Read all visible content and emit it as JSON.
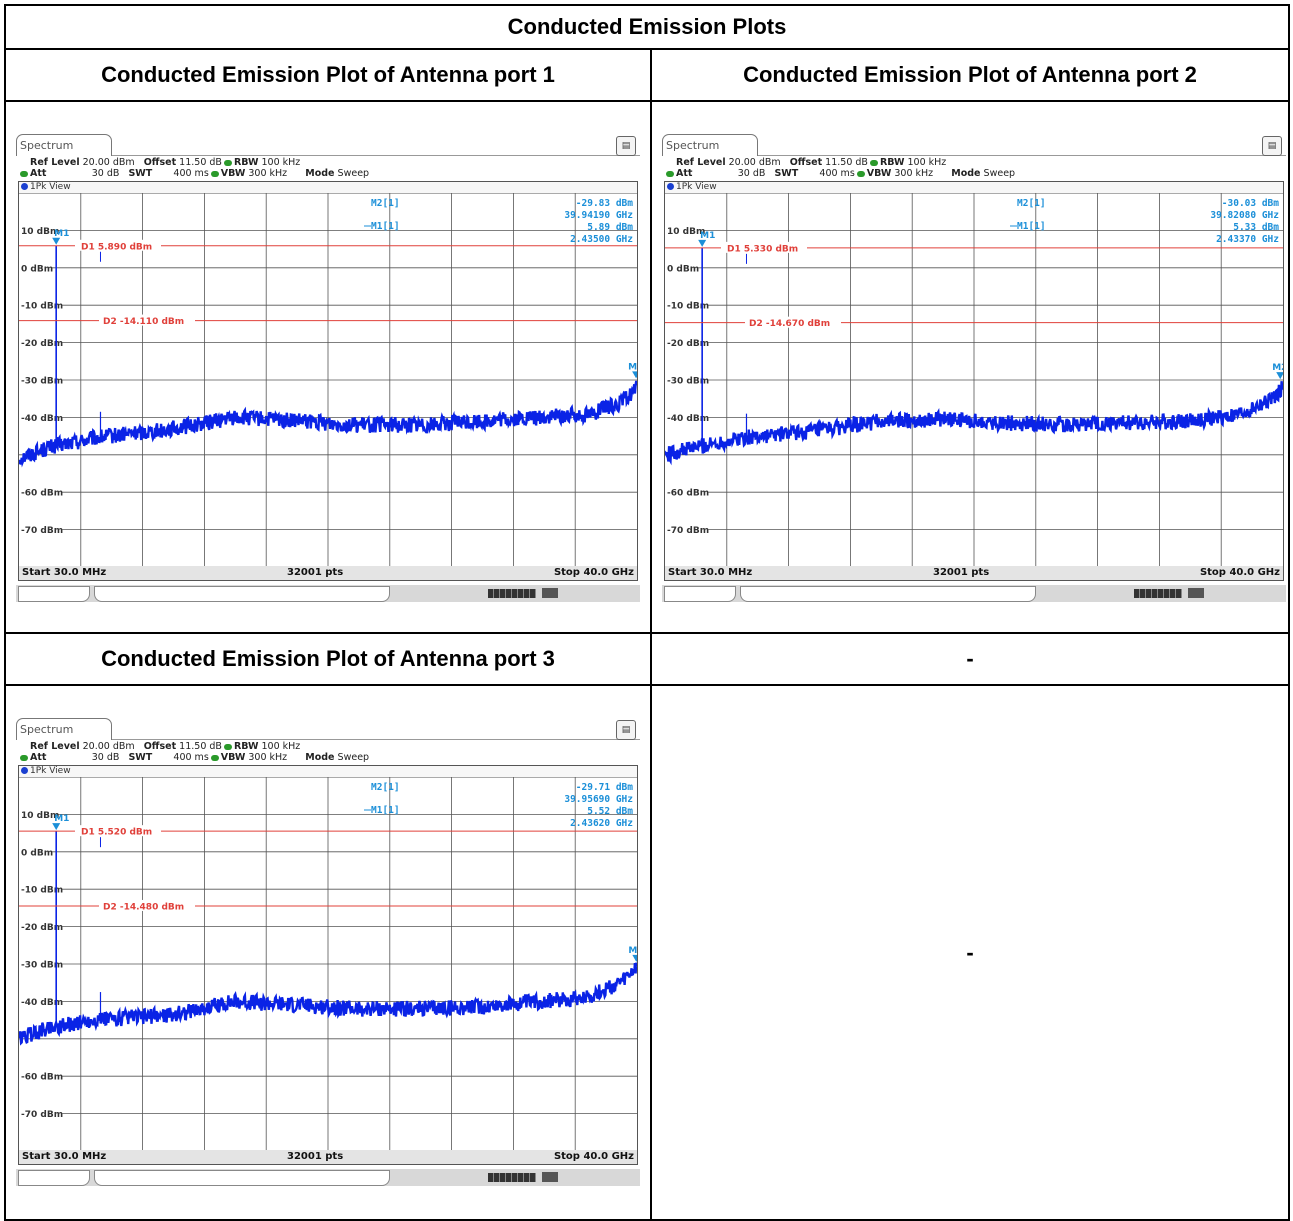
{
  "document": {
    "title": "Conducted Emission Plots",
    "cells": {
      "ant1_title": "Conducted Emission Plot of Antenna port 1",
      "ant2_title": "Conducted Emission Plot of Antenna port 2",
      "ant3_title": "Conducted Emission Plot of Antenna port 3",
      "empty_title": "-",
      "empty_body": "-"
    }
  },
  "common": {
    "tab": "Spectrum",
    "ref_level_label": "Ref Level",
    "ref_level": "20.00 dBm",
    "offset_label": "Offset",
    "offset": "11.50 dB",
    "rbw_label": "RBW",
    "rbw": "100 kHz",
    "att_label": "Att",
    "att": "30 dB",
    "swt_label": "SWT",
    "swt": "400 ms",
    "vbw_label": "VBW",
    "vbw": "300 kHz",
    "mode_label": "Mode",
    "mode": "Sweep",
    "view": "1Pk View",
    "start": "Start 30.0 MHz",
    "points": "32001 pts",
    "stop": "Stop 40.0 GHz",
    "m2_name": "M2[1]",
    "m1_name": "M1[1]",
    "trace_color": "#0a23e6",
    "line_color": "#e0403a",
    "marker_color": "#1b8fd8"
  },
  "chart_data": [
    {
      "type": "line",
      "id": "port1",
      "x_range_ghz": [
        0.03,
        40.0
      ],
      "ylim": [
        -80,
        20
      ],
      "yticks": [
        "10 dBm",
        "0 dBm",
        "-10 dBm",
        "-20 dBm",
        "-30 dBm",
        "-40 dBm",
        "-60 dBm",
        "-70 dBm"
      ],
      "d1": {
        "label": "D1",
        "value_text": "5.890 dBm",
        "value": 5.89
      },
      "d2": {
        "label": "D2",
        "value_text": "-14.110 dBm",
        "value": -14.11
      },
      "m1": {
        "label": "M1",
        "x_ghz": 2.435,
        "level_text": "5.89 dBm",
        "freq_text": "2.43500 GHz",
        "y": 5.89
      },
      "m2": {
        "label": "M2",
        "x_ghz": 39.9419,
        "level_text": "-29.83 dBm",
        "freq_text": "39.94190 GHz",
        "y": -29.83
      },
      "noise": [
        [
          0.03,
          -51
        ],
        [
          2,
          -48
        ],
        [
          5,
          -45.5
        ],
        [
          10,
          -43
        ],
        [
          14,
          -40
        ],
        [
          18,
          -41
        ],
        [
          22,
          -42
        ],
        [
          26,
          -42
        ],
        [
          30,
          -41
        ],
        [
          34,
          -40
        ],
        [
          37,
          -39
        ],
        [
          39,
          -36
        ],
        [
          40,
          -32
        ]
      ],
      "spur": {
        "x_ghz": 5.3,
        "y": -38.5
      }
    },
    {
      "type": "line",
      "id": "port2",
      "x_range_ghz": [
        0.03,
        40.0
      ],
      "ylim": [
        -80,
        20
      ],
      "yticks": [
        "10 dBm",
        "0 dBm",
        "-10 dBm",
        "-20 dBm",
        "-30 dBm",
        "-40 dBm",
        "-60 dBm",
        "-70 dBm"
      ],
      "d1": {
        "label": "D1",
        "value_text": "5.330 dBm",
        "value": 5.33
      },
      "d2": {
        "label": "D2",
        "value_text": "-14.670 dBm",
        "value": -14.67
      },
      "m1": {
        "label": "M1",
        "x_ghz": 2.4337,
        "level_text": "5.33 dBm",
        "freq_text": "2.43370 GHz",
        "y": 5.33
      },
      "m2": {
        "label": "M2",
        "x_ghz": 39.8208,
        "level_text": "-30.03 dBm",
        "freq_text": "39.82080 GHz",
        "y": -30.03
      },
      "noise": [
        [
          0.03,
          -50
        ],
        [
          2,
          -48
        ],
        [
          5,
          -45.5
        ],
        [
          10,
          -43.5
        ],
        [
          14,
          -41
        ],
        [
          18,
          -40.5
        ],
        [
          22,
          -41.5
        ],
        [
          26,
          -42
        ],
        [
          30,
          -41.5
        ],
        [
          34,
          -41
        ],
        [
          37,
          -39.5
        ],
        [
          39,
          -36
        ],
        [
          40,
          -32
        ]
      ],
      "spur": {
        "x_ghz": 5.3,
        "y": -39
      }
    },
    {
      "type": "line",
      "id": "port3",
      "x_range_ghz": [
        0.03,
        40.0
      ],
      "ylim": [
        -80,
        20
      ],
      "yticks": [
        "10 dBm",
        "0 dBm",
        "-10 dBm",
        "-20 dBm",
        "-30 dBm",
        "-40 dBm",
        "-60 dBm",
        "-70 dBm"
      ],
      "d1": {
        "label": "D1",
        "value_text": "5.520 dBm",
        "value": 5.52
      },
      "d2": {
        "label": "D2",
        "value_text": "-14.480 dBm",
        "value": -14.48
      },
      "m1": {
        "label": "M1",
        "x_ghz": 2.4362,
        "level_text": "5.52 dBm",
        "freq_text": "2.43620 GHz",
        "y": 5.52
      },
      "m2": {
        "label": "M2",
        "x_ghz": 39.9569,
        "level_text": "-29.71 dBm",
        "freq_text": "39.95690 GHz",
        "y": -29.71
      },
      "noise": [
        [
          0.03,
          -50
        ],
        [
          2,
          -47
        ],
        [
          5,
          -45
        ],
        [
          10,
          -43.5
        ],
        [
          14,
          -40
        ],
        [
          18,
          -41
        ],
        [
          22,
          -42
        ],
        [
          26,
          -42
        ],
        [
          30,
          -41.5
        ],
        [
          34,
          -40
        ],
        [
          37,
          -38.5
        ],
        [
          39,
          -35
        ],
        [
          40,
          -31
        ]
      ],
      "spur": {
        "x_ghz": 5.3,
        "y": -37.5
      }
    }
  ]
}
